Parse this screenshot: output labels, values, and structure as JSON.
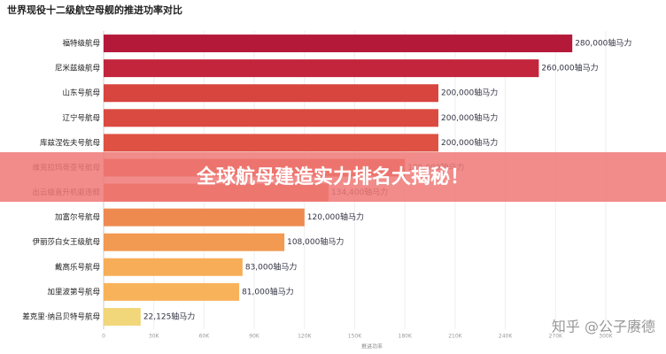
{
  "chart_data": {
    "type": "barh",
    "title": "世界现役十二级航空母舰的推进功率对比",
    "x_label": "推进功率",
    "categories": [
      "福特级航母",
      "尼米兹级航母",
      "山东号航母",
      "辽宁号航母",
      "库兹涅佐夫号航母",
      "维克拉玛蒂亚号航母",
      "出云级直升机驱逐舰",
      "加富尔号航母",
      "伊丽莎白女王级航母",
      "戴高乐号航母",
      "加里波第号航母",
      "差克里·纳吕贝特号航母"
    ],
    "values": [
      280000,
      260000,
      200000,
      200000,
      200000,
      180000,
      134400,
      120000,
      108000,
      83000,
      81000,
      22125
    ],
    "value_labels": [
      "280,000轴马力",
      "260,000轴马力",
      "200,000轴马力",
      "200,000轴马力",
      "200,000轴马力",
      "180,000轴马力",
      "134,400轴马力",
      "120,000轴马力",
      "108,000轴马力",
      "83,000轴马力",
      "81,000轴马力",
      "22,125轴马力"
    ],
    "colors": [
      "#b5193a",
      "#c3253d",
      "#d8453f",
      "#db4a40",
      "#df5243",
      "#e25d46",
      "#e56a4a",
      "#ee8a4f",
      "#f29a52",
      "#f7ad57",
      "#f8b35a",
      "#f1d67a"
    ],
    "xlim": [
      0,
      300000
    ],
    "xticks": [
      0,
      {
        "value": 30000,
        "label": "30K"
      },
      {
        "value": 60000,
        "label": "60K"
      },
      {
        "value": 90000,
        "label": "90K"
      },
      {
        "value": 120000,
        "label": "120K"
      },
      {
        "value": 150000,
        "label": "150K"
      },
      {
        "value": 180000,
        "label": "180K"
      },
      {
        "value": 210000,
        "label": "210K"
      },
      {
        "value": 240000,
        "label": "240K"
      },
      {
        "value": 270000,
        "label": "270K"
      },
      {
        "value": 300000,
        "label": "300K"
      }
    ],
    "banner": "全球航母建造实力排名大揭秘！",
    "watermark": "知乎 @公子赓德"
  }
}
